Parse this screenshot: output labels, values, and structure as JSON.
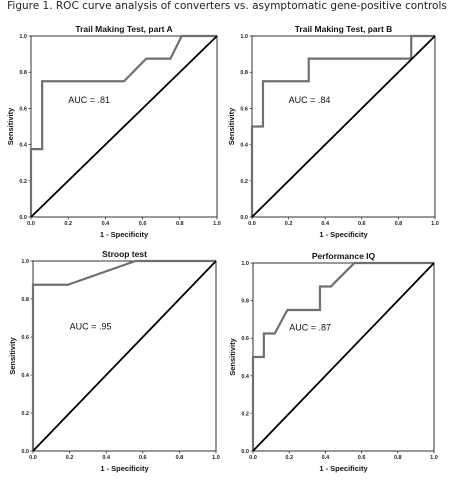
{
  "figure_title": "Figure 1. ROC curve analysis of converters vs. asymptomatic gene-positive controls",
  "chart_data": [
    {
      "type": "line",
      "title": "Trail Making Test, part A",
      "xlabel": "1 - Specificity",
      "ylabel": "Sensitivity",
      "xlim": [
        0,
        1
      ],
      "ylim": [
        0,
        1
      ],
      "xticks": [
        "0.0",
        "0.2",
        "0.4",
        "0.6",
        "0.8",
        "1.0"
      ],
      "yticks": [
        "0.0",
        "0.2",
        "0.4",
        "0.6",
        "0.8",
        "1.0"
      ],
      "annotation": "AUC = .81",
      "series": [
        {
          "x": [
            0,
            0,
            0.06,
            0.06,
            0.5,
            0.5,
            0.62,
            0.62,
            0.75,
            0.75,
            0.81,
            0.81,
            1.0
          ],
          "y": [
            0,
            0.375,
            0.375,
            0.75,
            0.75,
            0.75,
            0.875,
            0.875,
            0.875,
            0.875,
            1.0,
            1.0,
            1.0
          ],
          "color": "#707070"
        },
        {
          "x": [
            0,
            1
          ],
          "y": [
            0,
            1
          ],
          "color": "#000000"
        }
      ]
    },
    {
      "type": "line",
      "title": "Trail Making Test, part B",
      "xlabel": "1 - Specificity",
      "ylabel": "Sensitivity",
      "xlim": [
        0,
        1
      ],
      "ylim": [
        0,
        1
      ],
      "xticks": [
        "0.0",
        "0.2",
        "0.4",
        "0.6",
        "0.8",
        "1.0"
      ],
      "yticks": [
        "0.0",
        "0.2",
        "0.4",
        "0.6",
        "0.8",
        "1.0"
      ],
      "annotation": "AUC = .84",
      "series": [
        {
          "x": [
            0,
            0,
            0.06,
            0.06,
            0.31,
            0.31,
            0.87,
            0.87,
            1.0
          ],
          "y": [
            0,
            0.5,
            0.5,
            0.75,
            0.75,
            0.875,
            0.875,
            1.0,
            1.0
          ],
          "color": "#707070"
        },
        {
          "x": [
            0,
            1
          ],
          "y": [
            0,
            1
          ],
          "color": "#000000"
        }
      ]
    },
    {
      "type": "line",
      "title": "Stroop test",
      "xlabel": "1 - Specificity",
      "ylabel": "Sensitivity",
      "xlim": [
        0,
        1
      ],
      "ylim": [
        0,
        1
      ],
      "xticks": [
        "0.0",
        "0.2",
        "0.4",
        "0.6",
        "0.8",
        "1.0"
      ],
      "yticks": [
        "0.0",
        "0.2",
        "0.4",
        "0.6",
        "0.8",
        "1.0"
      ],
      "annotation": "AUC = .95",
      "series": [
        {
          "x": [
            0,
            0,
            0.19,
            0.56,
            1.0
          ],
          "y": [
            0,
            0.875,
            0.875,
            1.0,
            1.0
          ],
          "color": "#707070"
        },
        {
          "x": [
            0,
            1
          ],
          "y": [
            0,
            1
          ],
          "color": "#000000"
        }
      ]
    },
    {
      "type": "line",
      "title": "Performance IQ",
      "xlabel": "1 - Specificity",
      "ylabel": "Sensitivity",
      "xlim": [
        0,
        1
      ],
      "ylim": [
        0,
        1
      ],
      "xticks": [
        "0.0",
        "0.2",
        "0.4",
        "0.6",
        "0.8",
        "1.0"
      ],
      "yticks": [
        "0.0",
        "0.2",
        "0.4",
        "0.6",
        "0.8",
        "1.0"
      ],
      "annotation": "AUC = .87",
      "series": [
        {
          "x": [
            0,
            0,
            0.06,
            0.06,
            0.12,
            0.12,
            0.19,
            0.19,
            0.37,
            0.37,
            0.43,
            0.56,
            1.0
          ],
          "y": [
            0,
            0.5,
            0.5,
            0.625,
            0.625,
            0.625,
            0.75,
            0.75,
            0.75,
            0.875,
            0.875,
            1.0,
            1.0
          ],
          "color": "#707070"
        },
        {
          "x": [
            0,
            1
          ],
          "y": [
            0,
            1
          ],
          "color": "#000000"
        }
      ]
    }
  ]
}
